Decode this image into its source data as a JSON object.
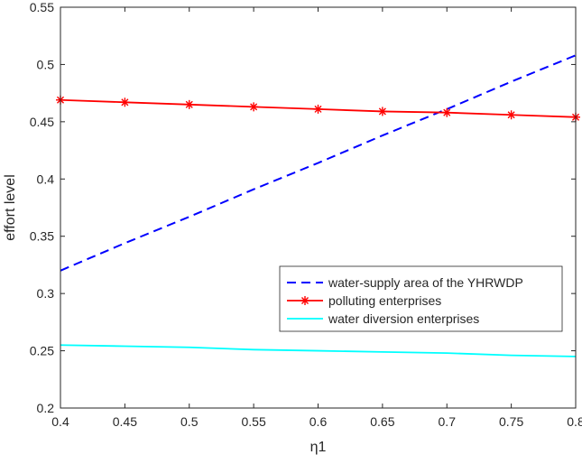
{
  "chart_data": {
    "type": "line",
    "title": "",
    "xlabel": "η1",
    "ylabel": "effort level",
    "xlim": [
      0.4,
      0.8
    ],
    "ylim": [
      0.2,
      0.55
    ],
    "x_ticks": [
      0.4,
      0.45,
      0.5,
      0.55,
      0.6,
      0.65,
      0.7,
      0.75,
      0.8
    ],
    "x_tick_labels": [
      "0.4",
      "0.45",
      "0.5",
      "0.55",
      "0.6",
      "0.65",
      "0.7",
      "0.75",
      "0.8"
    ],
    "y_ticks": [
      0.2,
      0.25,
      0.3,
      0.35,
      0.4,
      0.45,
      0.5,
      0.55
    ],
    "y_tick_labels": [
      "0.2",
      "0.25",
      "0.3",
      "0.35",
      "0.4",
      "0.45",
      "0.5",
      "0.55"
    ],
    "grid": false,
    "legend_position": "lower-right",
    "x": [
      0.4,
      0.45,
      0.5,
      0.55,
      0.6,
      0.65,
      0.7,
      0.75,
      0.8
    ],
    "series": [
      {
        "name": "water-supply area of the YHRWDP",
        "color": "#0000ff",
        "style": "dashed",
        "marker": "none",
        "values": [
          0.32,
          0.344,
          0.367,
          0.391,
          0.414,
          0.438,
          0.461,
          0.485,
          0.508
        ]
      },
      {
        "name": "polluting enterprises",
        "color": "#ff0000",
        "style": "solid",
        "marker": "asterisk",
        "values": [
          0.469,
          0.467,
          0.465,
          0.463,
          0.461,
          0.459,
          0.458,
          0.456,
          0.454
        ]
      },
      {
        "name": "water diversion enterprises",
        "color": "#00ffff",
        "style": "solid",
        "marker": "none",
        "values": [
          0.255,
          0.254,
          0.253,
          0.251,
          0.25,
          0.249,
          0.248,
          0.246,
          0.245
        ]
      }
    ]
  }
}
